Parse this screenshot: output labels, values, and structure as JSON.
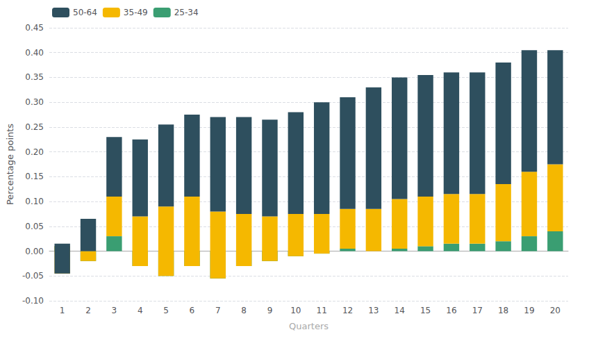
{
  "chart_data": {
    "type": "bar",
    "stacked": true,
    "xlabel": "Quarters",
    "ylabel": "Percentage points",
    "categories": [
      "1",
      "2",
      "3",
      "4",
      "5",
      "6",
      "7",
      "8",
      "9",
      "10",
      "11",
      "12",
      "13",
      "14",
      "15",
      "16",
      "17",
      "18",
      "19",
      "20"
    ],
    "series": [
      {
        "name": "25-34",
        "color": "#3a9e72",
        "values": [
          0.01,
          -0.02,
          0.03,
          -0.03,
          -0.05,
          -0.03,
          -0.055,
          -0.03,
          -0.02,
          -0.01,
          -0.005,
          0.005,
          0.0,
          0.005,
          0.01,
          0.015,
          0.015,
          0.02,
          0.03,
          0.04
        ]
      },
      {
        "name": "35-49",
        "color": "#f5b800",
        "values": [
          -0.055,
          0.02,
          0.08,
          0.1,
          0.14,
          0.14,
          0.135,
          0.105,
          0.09,
          0.085,
          0.08,
          0.08,
          0.085,
          0.1,
          0.1,
          0.1,
          0.1,
          0.115,
          0.13,
          0.135
        ]
      },
      {
        "name": "50-64",
        "color": "#2e4f5e",
        "values": [
          0.06,
          0.065,
          0.12,
          0.155,
          0.165,
          0.165,
          0.19,
          0.195,
          0.195,
          0.205,
          0.225,
          0.225,
          0.245,
          0.245,
          0.245,
          0.245,
          0.245,
          0.245,
          0.245,
          0.23
        ]
      }
    ],
    "ylim": [
      -0.1,
      0.45
    ],
    "yticks": [
      {
        "value": -0.1,
        "label": "-0.10"
      },
      -0.05,
      {
        "value": 0,
        "label": "0.00"
      },
      0.05,
      {
        "value": 0.1,
        "label": "0.10"
      },
      0.15,
      {
        "value": 0.2,
        "label": "0.20"
      },
      0.25,
      {
        "value": 0.3,
        "label": "0.30"
      },
      0.35,
      {
        "value": 0.4,
        "label": "0.40"
      },
      0.45
    ],
    "grid": true,
    "legend": "upper left"
  }
}
